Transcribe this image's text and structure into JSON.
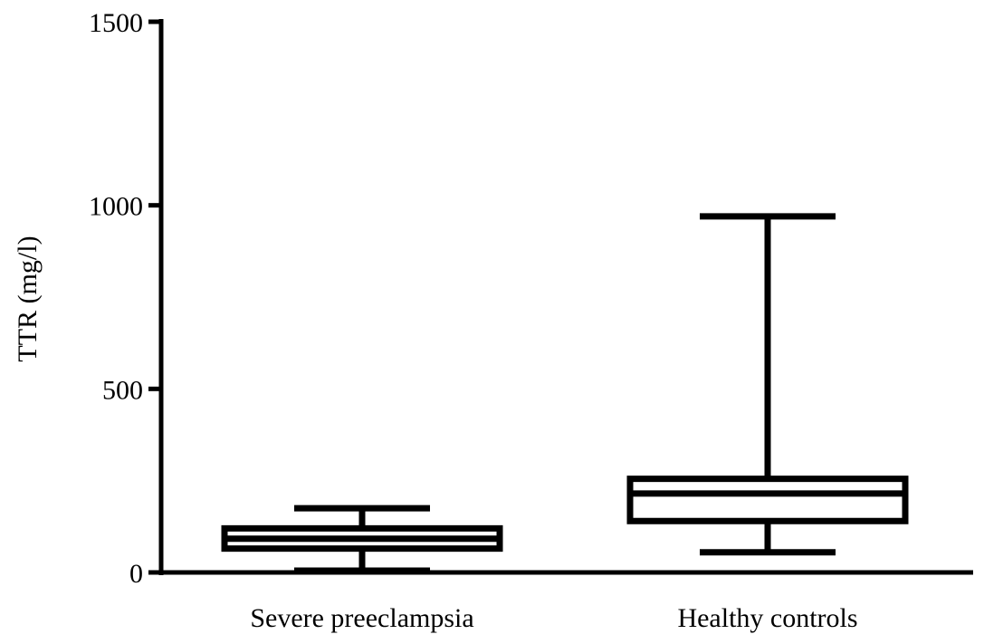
{
  "chart_data": {
    "type": "boxplot",
    "ylabel": "TTR (mg/l)",
    "xlabel": "",
    "ylim": [
      0,
      1500
    ],
    "yticks": [
      0,
      500,
      1000,
      1500
    ],
    "grid": false,
    "categories": [
      "Severe preeclampsia",
      "Healthy controls"
    ],
    "boxes": [
      {
        "category": "Severe preeclampsia",
        "min": 5,
        "q1": 65,
        "median": 92,
        "q3": 120,
        "max": 175
      },
      {
        "category": "Healthy controls",
        "min": 55,
        "q1": 140,
        "median": 215,
        "q3": 255,
        "max": 970
      }
    ],
    "colors": {
      "stroke": "#000000",
      "fill": "#ffffff"
    }
  }
}
